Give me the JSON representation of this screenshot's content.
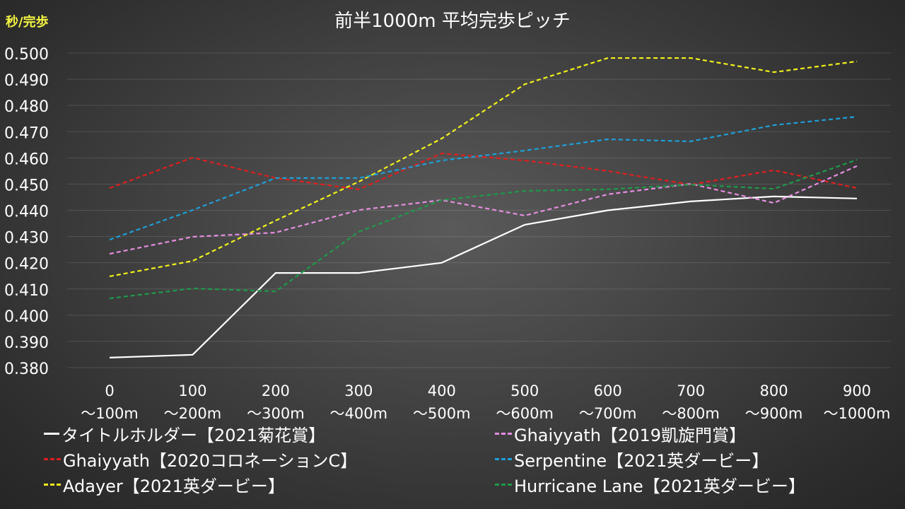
{
  "chart_data": {
    "type": "line",
    "title": "前半1000m 平均完歩ピッチ",
    "ylabel": "秒/完歩",
    "xlabel": "",
    "ylim": [
      0.38,
      0.5
    ],
    "yticks": [
      "0.380",
      "0.390",
      "0.400",
      "0.410",
      "0.420",
      "0.430",
      "0.440",
      "0.450",
      "0.460",
      "0.470",
      "0.480",
      "0.490",
      "0.500"
    ],
    "grid": true,
    "legend_placement": "bottom",
    "categories": [
      [
        "0",
        "～100m"
      ],
      [
        "100",
        "～200m"
      ],
      [
        "200",
        "～300m"
      ],
      [
        "300",
        "～400m"
      ],
      [
        "400",
        "～500m"
      ],
      [
        "500",
        "～600m"
      ],
      [
        "600",
        "～700m"
      ],
      [
        "700",
        "～800m"
      ],
      [
        "800",
        "～900m"
      ],
      [
        "900",
        "～1000m"
      ]
    ],
    "series": [
      {
        "name": "タイトルホルダー【2021菊花賞】",
        "color": "#ffffff",
        "dash": false,
        "values": [
          0.3838,
          0.3849,
          0.4161,
          0.4161,
          0.42,
          0.4345,
          0.44,
          0.4434,
          0.4453,
          0.4445
        ]
      },
      {
        "name": "Ghaiyyath【2020コロネーションC】",
        "color": "#e01e1e",
        "dash": true,
        "values": [
          0.4485,
          0.4601,
          0.4523,
          0.448,
          0.4617,
          0.459,
          0.455,
          0.4498,
          0.4553,
          0.4485
        ]
      },
      {
        "name": "Adayer【2021英ダービー】",
        "color": "#f2f21a",
        "dash": true,
        "values": [
          0.4148,
          0.4207,
          0.4361,
          0.4509,
          0.4674,
          0.4881,
          0.4981,
          0.4981,
          0.4927,
          0.4968
        ]
      },
      {
        "name": "Ghaiyyath【2019凱旋門賞】",
        "color": "#e58ee0",
        "dash": true,
        "values": [
          0.4234,
          0.4299,
          0.4315,
          0.4401,
          0.4439,
          0.438,
          0.4461,
          0.4501,
          0.4428,
          0.4569
        ]
      },
      {
        "name": "Serpentine【2021英ダービー】",
        "color": "#1e9fd8",
        "dash": true,
        "values": [
          0.4288,
          0.4401,
          0.4523,
          0.4523,
          0.459,
          0.4628,
          0.4671,
          0.4663,
          0.4725,
          0.4757
        ]
      },
      {
        "name": "Hurricane Lane【2021英ダービー】",
        "color": "#1e9a4a",
        "dash": true,
        "values": [
          0.4064,
          0.4102,
          0.4091,
          0.4318,
          0.4439,
          0.4474,
          0.448,
          0.4498,
          0.4482,
          0.4593
        ]
      }
    ]
  }
}
